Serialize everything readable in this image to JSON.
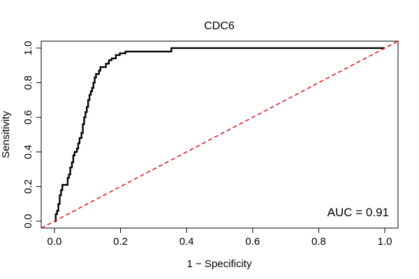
{
  "chart_data": {
    "type": "line",
    "title": "CDC6",
    "xlabel": "1 − Specificity",
    "ylabel": "Sensitivity",
    "xlim": [
      -0.04,
      1.04
    ],
    "ylim": [
      -0.04,
      1.04
    ],
    "x_ticks": [
      0.0,
      0.2,
      0.4,
      0.6,
      0.8,
      1.0
    ],
    "y_ticks": [
      0.0,
      0.2,
      0.4,
      0.6,
      0.8,
      1.0
    ],
    "x_tick_labels": [
      "0.0",
      "0.2",
      "0.4",
      "0.6",
      "0.8",
      "1.0"
    ],
    "y_tick_labels": [
      "0.0",
      "0.2",
      "0.4",
      "0.6",
      "0.8",
      "1.0"
    ],
    "grid": false,
    "annotation": "AUC = 0.91",
    "series": [
      {
        "role": "roc-curve",
        "color": "#000000",
        "style": "solid",
        "x": [
          0.0,
          0.004,
          0.004,
          0.008,
          0.008,
          0.012,
          0.012,
          0.016,
          0.016,
          0.02,
          0.02,
          0.024,
          0.024,
          0.04,
          0.04,
          0.044,
          0.044,
          0.048,
          0.048,
          0.053,
          0.053,
          0.057,
          0.057,
          0.061,
          0.061,
          0.068,
          0.068,
          0.072,
          0.072,
          0.076,
          0.076,
          0.082,
          0.082,
          0.086,
          0.086,
          0.09,
          0.09,
          0.094,
          0.094,
          0.098,
          0.098,
          0.102,
          0.102,
          0.106,
          0.106,
          0.11,
          0.11,
          0.114,
          0.114,
          0.118,
          0.118,
          0.122,
          0.122,
          0.126,
          0.126,
          0.135,
          0.135,
          0.139,
          0.139,
          0.156,
          0.156,
          0.165,
          0.165,
          0.173,
          0.173,
          0.186,
          0.186,
          0.198,
          0.198,
          0.215,
          0.215,
          0.354,
          0.354,
          1.0
        ],
        "y": [
          0.0,
          0.0,
          0.04,
          0.04,
          0.06,
          0.06,
          0.1,
          0.1,
          0.15,
          0.15,
          0.18,
          0.18,
          0.21,
          0.21,
          0.25,
          0.25,
          0.27,
          0.27,
          0.31,
          0.31,
          0.34,
          0.34,
          0.38,
          0.38,
          0.4,
          0.4,
          0.42,
          0.42,
          0.45,
          0.45,
          0.48,
          0.48,
          0.51,
          0.51,
          0.56,
          0.56,
          0.6,
          0.6,
          0.63,
          0.63,
          0.66,
          0.66,
          0.7,
          0.7,
          0.73,
          0.73,
          0.75,
          0.75,
          0.77,
          0.77,
          0.8,
          0.8,
          0.83,
          0.83,
          0.85,
          0.85,
          0.87,
          0.87,
          0.89,
          0.89,
          0.91,
          0.91,
          0.93,
          0.93,
          0.94,
          0.94,
          0.96,
          0.96,
          0.97,
          0.97,
          0.98,
          0.98,
          1.0,
          1.0
        ]
      },
      {
        "role": "reference-diagonal",
        "color": "#e41a1c",
        "style": "dashed",
        "x": [
          -0.04,
          1.04
        ],
        "y": [
          -0.04,
          1.04
        ]
      }
    ]
  }
}
